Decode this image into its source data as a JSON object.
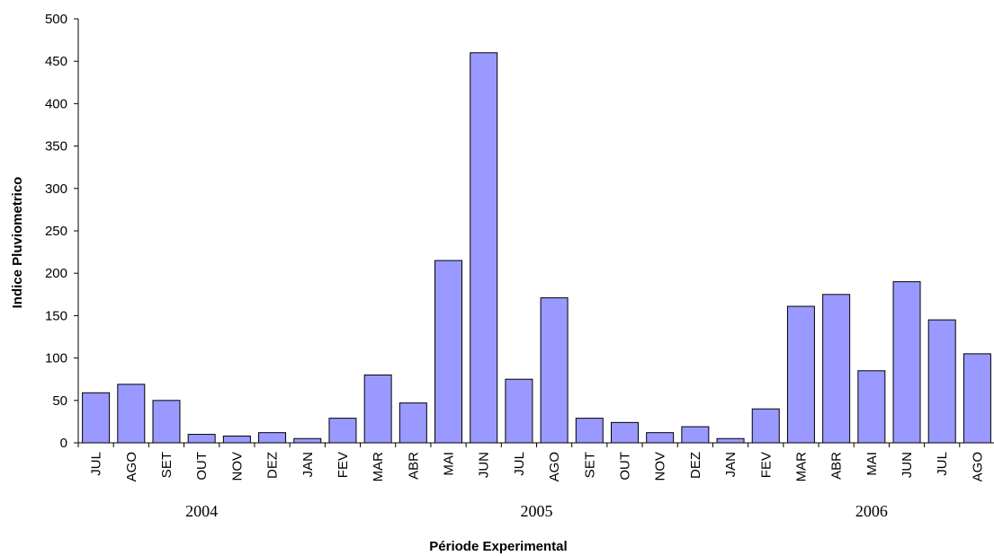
{
  "chart_data": {
    "type": "bar",
    "title": "",
    "xlabel": "Période Experimental",
    "ylabel": "Indice Pluviometrico",
    "ylim": [
      0,
      500
    ],
    "yticks": [
      0,
      50,
      100,
      150,
      200,
      250,
      300,
      350,
      400,
      450,
      500
    ],
    "grid": false,
    "categories": [
      "JUL",
      "AGO",
      "SET",
      "OUT",
      "NOV",
      "DEZ",
      "JAN",
      "FEV",
      "MAR",
      "ABR",
      "MAI",
      "JUN",
      "JUL",
      "AGO",
      "SET",
      "OUT",
      "NOV",
      "DEZ",
      "JAN",
      "FEV",
      "MAR",
      "ABR",
      "MAI",
      "JUN",
      "JUL",
      "AGO"
    ],
    "values": [
      59,
      69,
      50,
      10,
      8,
      12,
      5,
      29,
      80,
      47,
      215,
      460,
      75,
      171,
      29,
      24,
      12,
      19,
      5,
      40,
      161,
      175,
      85,
      190,
      145,
      105
    ],
    "year_groups": [
      {
        "label": "2004",
        "start": 0,
        "end": 6
      },
      {
        "label": "2005",
        "start": 7,
        "end": 18
      },
      {
        "label": "2006",
        "start": 19,
        "end": 25
      }
    ],
    "bar_color": "#9999ff",
    "bar_stroke": "#000000"
  }
}
